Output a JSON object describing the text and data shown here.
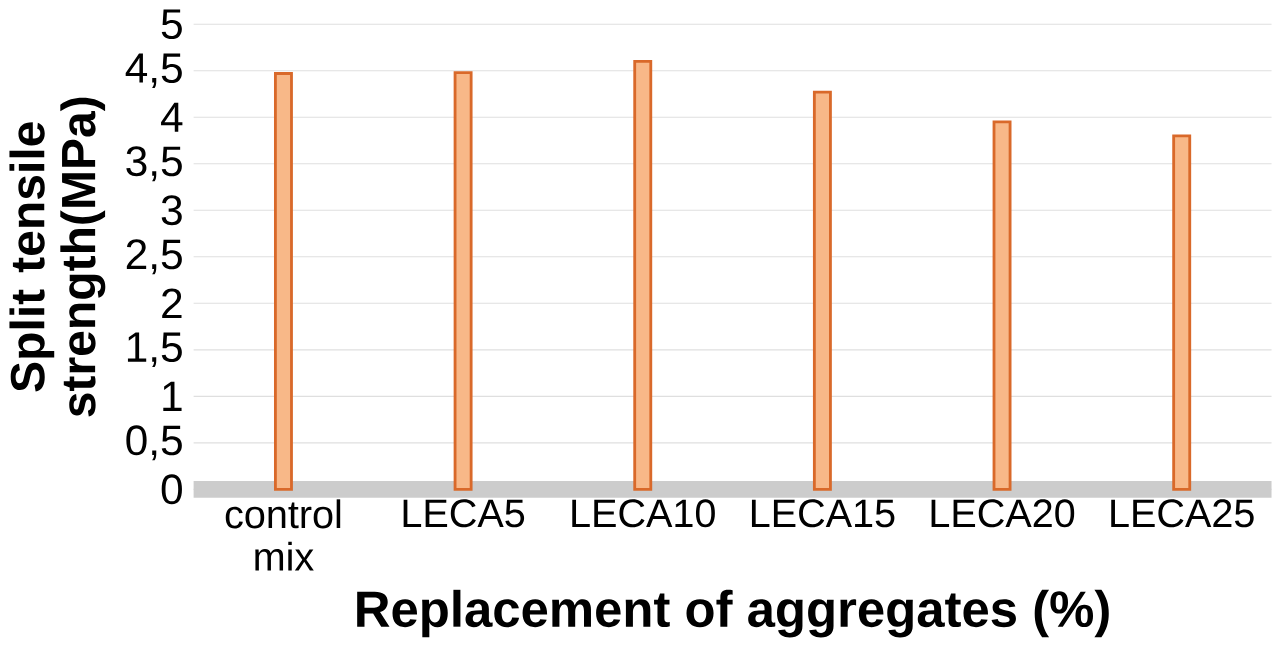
{
  "chart_data": {
    "type": "bar",
    "xlabel": "Replacement of aggregates (%)",
    "ylabel": "Split tensile strength(MPa)",
    "categories": [
      "control mix",
      "LECA5",
      "LECA10",
      "LECA15",
      "LECA20",
      "LECA25"
    ],
    "values": [
      4.47,
      4.48,
      4.6,
      4.27,
      3.95,
      3.8
    ],
    "color": "#f8b888",
    "ylim": [
      0,
      5
    ],
    "yticks": [
      0,
      {
        "value": 0.5,
        "label": "0,5"
      },
      1,
      {
        "value": 1.5,
        "label": "1,5"
      },
      2,
      {
        "value": 2.5,
        "label": "2,5"
      },
      3,
      {
        "value": 3.5,
        "label": "3,5"
      },
      4,
      {
        "value": 4.5,
        "label": "4,5"
      },
      5
    ],
    "grid": "y"
  }
}
